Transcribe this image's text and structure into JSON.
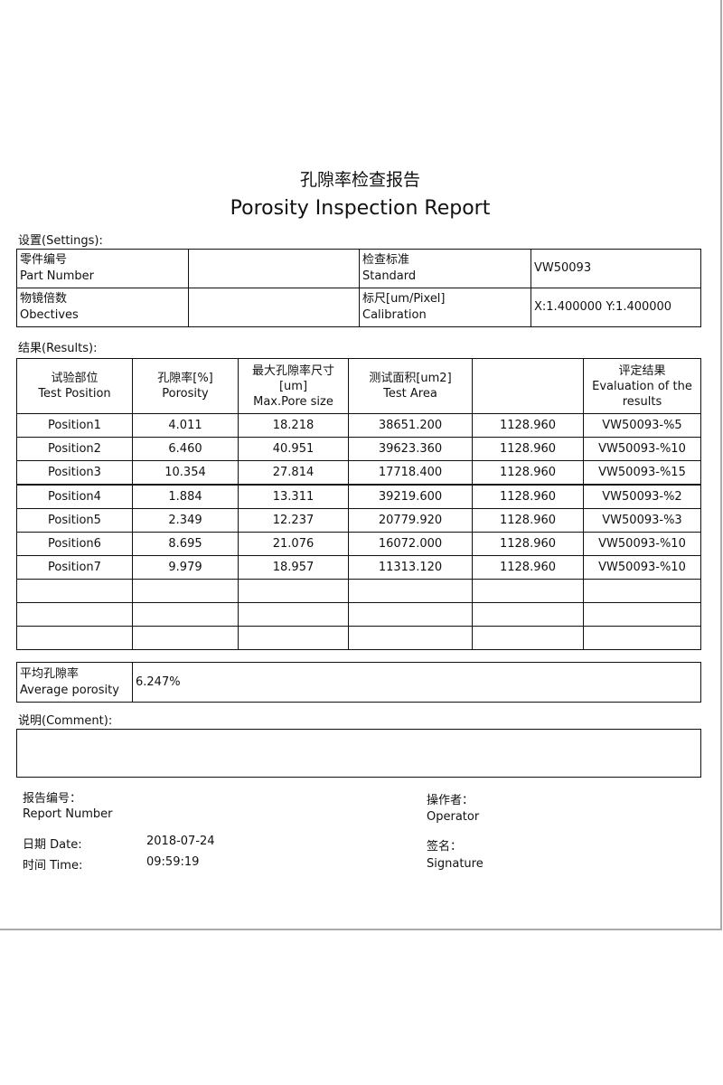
{
  "title_cn": "孔隙率检查报告",
  "title_en": "Porosity Inspection Report",
  "settings_label": "设置(Settings):",
  "settings": {
    "part_number_label_cn": "零件编号",
    "part_number_label_en": "Part Number",
    "part_number_value": "",
    "standard_label_cn": "检查标准",
    "standard_label_en": "Standard",
    "standard_value": "VW50093",
    "objectives_label_cn": "物镜倍数",
    "objectives_label_en": "Obectives",
    "objectives_value": "",
    "calibration_label_cn": "标尺[um/Pixel]",
    "calibration_label_en": "Calibration",
    "calibration_value": "X:1.400000  Y:1.400000"
  },
  "results_label": "结果(Results):",
  "results": {
    "headers": [
      {
        "cn": "试验部位",
        "en": "Test Position"
      },
      {
        "cn": "孔隙率[%]",
        "en": "Porosity"
      },
      {
        "cn": "最大孔隙率尺寸",
        "unit": "[um]",
        "en": "Max.Pore size"
      },
      {
        "cn": "测试面积[um2]",
        "en": "Test Area"
      },
      {
        "cn": "",
        "en": ""
      },
      {
        "cn": "评定结果",
        "en": "Evaluation of the results"
      }
    ],
    "rows": [
      [
        "Position1",
        "4.011",
        "18.218",
        "38651.200",
        "1128.960",
        "VW50093-%5"
      ],
      [
        "Position2",
        "6.460",
        "40.951",
        "39623.360",
        "1128.960",
        "VW50093-%10"
      ],
      [
        "Position3",
        "10.354",
        "27.814",
        "17718.400",
        "1128.960",
        "VW50093-%15"
      ],
      [
        "Position4",
        "1.884",
        "13.311",
        "39219.600",
        "1128.960",
        "VW50093-%2"
      ],
      [
        "Position5",
        "2.349",
        "12.237",
        "20779.920",
        "1128.960",
        "VW50093-%3"
      ],
      [
        "Position6",
        "8.695",
        "21.076",
        "16072.000",
        "1128.960",
        "VW50093-%10"
      ],
      [
        "Position7",
        "9.979",
        "18.957",
        "11313.120",
        "1128.960",
        "VW50093-%10"
      ],
      [
        "",
        "",
        "",
        "",
        "",
        ""
      ],
      [
        "",
        "",
        "",
        "",
        "",
        ""
      ],
      [
        "",
        "",
        "",
        "",
        "",
        ""
      ]
    ],
    "average_label_cn": "平均孔隙率",
    "average_label_en": "Average porosity",
    "average_value": "6.247%"
  },
  "comment_label": "说明(Comment):",
  "comment_value": "",
  "footer": {
    "report_number_cn": "报告编号：",
    "report_number_en": "Report Number",
    "date_label": "日期 Date:",
    "date_value": "2018-07-24",
    "time_label": "时间 Time:",
    "time_value": "09:59:19",
    "operator_cn": "操作者：",
    "operator_en": "Operator",
    "signature_cn": "签名：",
    "signature_en": "Signature"
  }
}
